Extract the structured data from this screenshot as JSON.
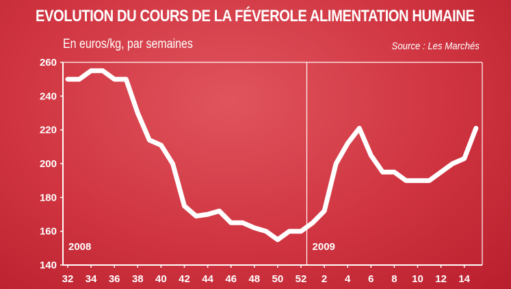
{
  "title": "EVOLUTION DU COURS DE LA FÉVEROLE ALIMENTATION HUMAINE",
  "subtitle": "En euros/kg, par semaines",
  "source": "Source : Les Marchés",
  "colors": {
    "background": "#cf3440",
    "line": "#ffffff",
    "grid": "#ffffff"
  },
  "chart_data": {
    "type": "line",
    "xlabel": "",
    "ylabel": "",
    "ylim": [
      140,
      260
    ],
    "yticks": [
      140,
      160,
      180,
      200,
      220,
      240,
      260
    ],
    "grid": false,
    "x_tick_labels": [
      "32",
      "34",
      "36",
      "38",
      "40",
      "42",
      "44",
      "46",
      "48",
      "50",
      "52",
      "2",
      "4",
      "6",
      "8",
      "10",
      "12",
      "14"
    ],
    "year_labels": [
      "2008",
      "2009"
    ],
    "year_divider_after": "52",
    "series": [
      {
        "weeks": [
          "32",
          "33",
          "34",
          "35",
          "36",
          "37",
          "38",
          "39",
          "40",
          "41",
          "42",
          "43",
          "44",
          "45",
          "46",
          "47",
          "48",
          "49",
          "50",
          "51",
          "52",
          "1",
          "2",
          "3",
          "4",
          "5",
          "6",
          "7",
          "8",
          "9",
          "10",
          "11",
          "12",
          "13",
          "14",
          "15"
        ],
        "values": [
          250,
          250,
          255,
          255,
          250,
          250,
          230,
          214,
          211,
          200,
          175,
          169,
          170,
          172,
          165,
          165,
          162,
          160,
          155,
          160,
          160,
          165,
          172,
          200,
          212,
          221,
          205,
          195,
          195,
          190,
          190,
          190,
          195,
          200,
          203,
          221
        ]
      }
    ]
  }
}
